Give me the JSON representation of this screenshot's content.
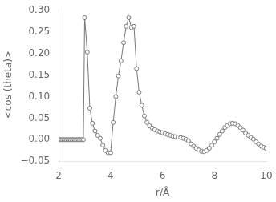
{
  "chart_data": {
    "type": "line",
    "xlabel": "r/Å",
    "ylabel": "<cos (theta)>",
    "xlim": [
      2,
      10
    ],
    "ylim": [
      -0.05,
      0.305
    ],
    "xticks": [
      2,
      4,
      6,
      8,
      10
    ],
    "yticks": [
      {
        "value": -0.05,
        "label": "−0.05"
      },
      {
        "value": 0.0,
        "label": "0.00"
      },
      0.05,
      {
        "value": 0.1,
        "label": "0.10"
      },
      0.15,
      {
        "value": 0.2,
        "label": "0.20"
      },
      0.25,
      {
        "value": 0.3,
        "label": "0.30"
      }
    ],
    "grid": false,
    "marker": "circle",
    "color": "#777777",
    "x": [
      2.0,
      2.05,
      2.1,
      2.15,
      2.2,
      2.25,
      2.3,
      2.35,
      2.4,
      2.45,
      2.5,
      2.55,
      2.6,
      2.65,
      2.7,
      2.75,
      2.8,
      2.85,
      2.9,
      2.95,
      3.0,
      3.1,
      3.2,
      3.3,
      3.4,
      3.5,
      3.6,
      3.7,
      3.8,
      3.9,
      4.0,
      4.1,
      4.2,
      4.3,
      4.4,
      4.5,
      4.6,
      4.7,
      4.8,
      4.9,
      5.0,
      5.1,
      5.2,
      5.3,
      5.4,
      5.5,
      5.6,
      5.7,
      5.8,
      5.9,
      6.0,
      6.1,
      6.2,
      6.3,
      6.4,
      6.5,
      6.6,
      6.7,
      6.8,
      6.9,
      7.0,
      7.1,
      7.2,
      7.3,
      7.4,
      7.5,
      7.6,
      7.7,
      7.8,
      7.9,
      8.0,
      8.1,
      8.2,
      8.3,
      8.4,
      8.5,
      8.6,
      8.7,
      8.8,
      8.9,
      9.0,
      9.1,
      9.2,
      9.3,
      9.4,
      9.5,
      9.6,
      9.7,
      9.8,
      9.9,
      10.0
    ],
    "values": [
      0.0,
      0.0,
      0.0,
      0.0,
      0.0,
      0.0,
      0.0,
      0.0,
      0.0,
      0.0,
      0.0,
      0.0,
      0.0,
      0.0,
      0.0,
      0.0,
      0.0,
      0.0,
      0.0,
      0.0,
      0.283,
      0.203,
      0.073,
      0.038,
      0.02,
      0.01,
      0.003,
      -0.013,
      -0.025,
      -0.03,
      -0.03,
      0.04,
      0.1,
      0.148,
      0.183,
      0.225,
      0.263,
      0.283,
      0.26,
      0.263,
      0.165,
      0.11,
      0.08,
      0.055,
      0.04,
      0.032,
      0.027,
      0.023,
      0.02,
      0.018,
      0.016,
      0.014,
      0.012,
      0.01,
      0.008,
      0.007,
      0.006,
      0.005,
      0.003,
      0.001,
      -0.003,
      -0.01,
      -0.015,
      -0.02,
      -0.024,
      -0.027,
      -0.028,
      -0.025,
      -0.02,
      -0.013,
      -0.005,
      0.003,
      0.012,
      0.02,
      0.028,
      0.033,
      0.037,
      0.038,
      0.037,
      0.033,
      0.028,
      0.022,
      0.015,
      0.01,
      0.005,
      0.001,
      -0.005,
      -0.01,
      -0.015,
      -0.018,
      -0.02
    ]
  }
}
